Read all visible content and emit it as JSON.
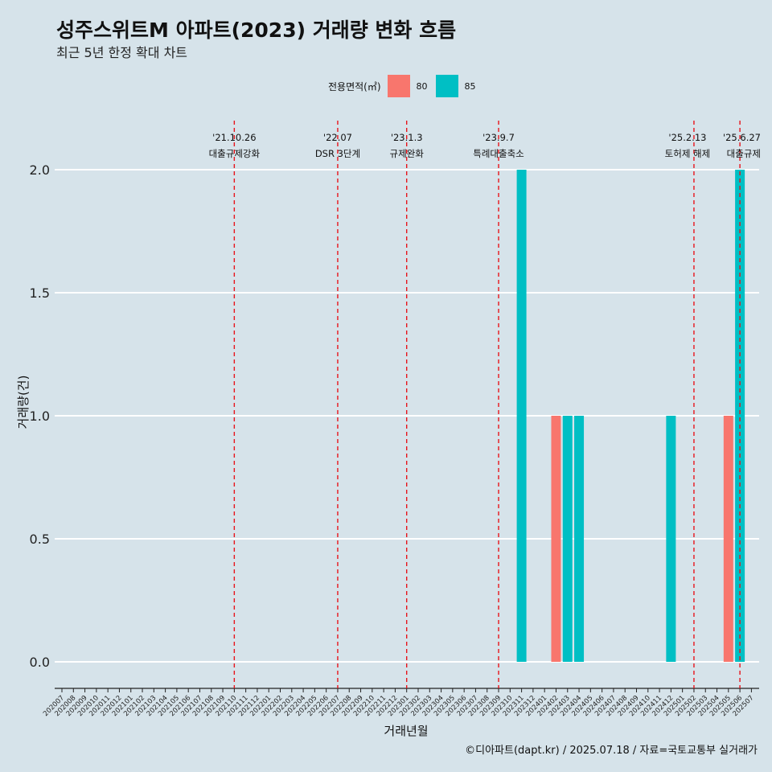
{
  "title": "성주스위트M 아파트(2023) 거래량 변화 흐름",
  "subtitle": "최근 5년 한정 확대 차트",
  "legend": {
    "title": "전용면적(㎡)",
    "items": [
      {
        "label": "80",
        "color": "#F8766D"
      },
      {
        "label": "85",
        "color": "#00BFC4"
      }
    ]
  },
  "caption": "©디아파트(dapt.kr) / 2025.07.18 / 자료=국토교통부 실거래가",
  "chart_data": {
    "type": "bar",
    "xlabel": "거래년월",
    "ylabel": "거래량(건)",
    "ylim": [
      0,
      2
    ],
    "yticks": [
      "0.0",
      "0.5",
      "1.0",
      "1.5",
      "2.0"
    ],
    "grid": true,
    "categories": [
      "202007",
      "202008",
      "202009",
      "202010",
      "202011",
      "202012",
      "202101",
      "202102",
      "202103",
      "202104",
      "202105",
      "202106",
      "202107",
      "202108",
      "202109",
      "202110",
      "202111",
      "202112",
      "202201",
      "202202",
      "202203",
      "202204",
      "202205",
      "202206",
      "202207",
      "202208",
      "202209",
      "202210",
      "202211",
      "202212",
      "202301",
      "202302",
      "202303",
      "202304",
      "202305",
      "202306",
      "202307",
      "202308",
      "202309",
      "202310",
      "202311",
      "202312",
      "202401",
      "202402",
      "202403",
      "202404",
      "202405",
      "202406",
      "202407",
      "202408",
      "202409",
      "202410",
      "202411",
      "202412",
      "202501",
      "202502",
      "202503",
      "202504",
      "202505",
      "202506",
      "202507"
    ],
    "bars": [
      {
        "x": "202311",
        "area": "85",
        "value": 2
      },
      {
        "x": "202402",
        "area": "80",
        "value": 1
      },
      {
        "x": "202403",
        "area": "85",
        "value": 1
      },
      {
        "x": "202404",
        "area": "85",
        "value": 1
      },
      {
        "x": "202412",
        "area": "85",
        "value": 1
      },
      {
        "x": "202505",
        "area": "80",
        "value": 1
      },
      {
        "x": "202506",
        "area": "85",
        "value": 2
      }
    ],
    "annotations": [
      {
        "x": "202110",
        "date": "'21.10.26",
        "label": "대출규제강화"
      },
      {
        "x": "202207",
        "date": "'22.07",
        "label": "DSR 3단계"
      },
      {
        "x": "202301",
        "date": "'23.1.3",
        "label": "규제완화"
      },
      {
        "x": "202309",
        "date": "'23.9.7",
        "label": "특례대출축소"
      },
      {
        "x": "202502",
        "date": "'25.2.13",
        "label": "토허제 해제"
      },
      {
        "x": "202506",
        "date": "'25.6.27",
        "label": "대출규제"
      }
    ]
  }
}
